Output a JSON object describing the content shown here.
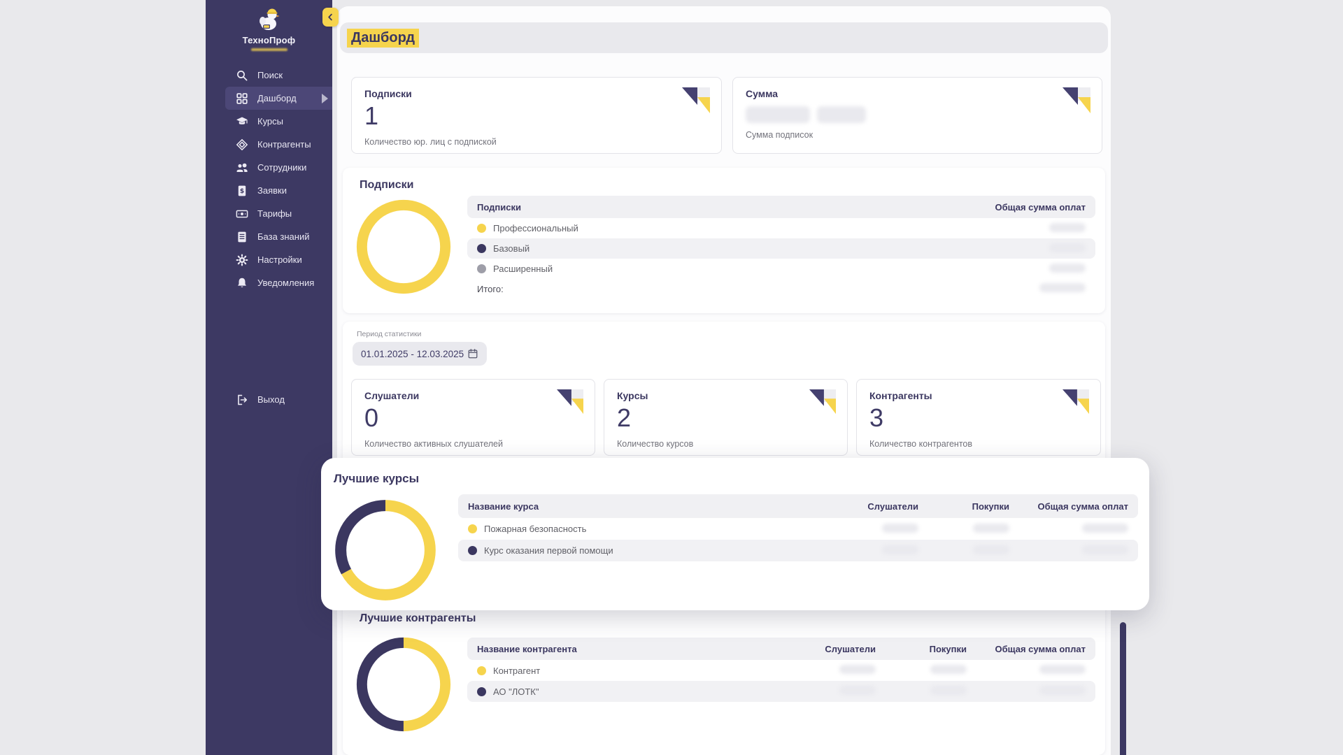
{
  "app": {
    "brand": "ТехноПроф"
  },
  "sidebar": {
    "items": [
      {
        "label": "Поиск",
        "icon": "search-icon"
      },
      {
        "label": "Дашборд",
        "icon": "dashboard-icon",
        "active": true
      },
      {
        "label": "Курсы",
        "icon": "courses-icon"
      },
      {
        "label": "Контрагенты",
        "icon": "counterparties-icon"
      },
      {
        "label": "Сотрудники",
        "icon": "employees-icon"
      },
      {
        "label": "Заявки",
        "icon": "requests-icon"
      },
      {
        "label": "Тарифы",
        "icon": "tariffs-icon"
      },
      {
        "label": "База знаний",
        "icon": "knowledge-base-icon"
      },
      {
        "label": "Настройки",
        "icon": "settings-icon"
      },
      {
        "label": "Уведомления",
        "icon": "notifications-icon"
      }
    ],
    "logout_label": "Выход"
  },
  "header": {
    "title": "Дашборд"
  },
  "kpi_top": [
    {
      "title": "Подписки",
      "value": "1",
      "subtitle": "Количество юр. лиц с подпиской"
    },
    {
      "title": "Сумма",
      "value": "",
      "subtitle": "Сумма подписок",
      "redacted": true
    }
  ],
  "subscriptions": {
    "section_title": "Подписки",
    "table": {
      "col_name": "Подписки",
      "col_total": "Общая сумма оплат",
      "rows": [
        {
          "label": "Профессиональный",
          "color": "#f6d44d"
        },
        {
          "label": "Базовый",
          "color": "#3b3760"
        },
        {
          "label": "Расширенный",
          "color": "#9e9ea8"
        }
      ],
      "total_label": "Итого:"
    }
  },
  "period": {
    "label": "Период статистики",
    "value": "01.01.2025 - 12.03.2025"
  },
  "kpi_stats": [
    {
      "title": "Слушатели",
      "value": "0",
      "subtitle": "Количество активных слушателей"
    },
    {
      "title": "Курсы",
      "value": "2",
      "subtitle": "Количество курсов"
    },
    {
      "title": "Контрагенты",
      "value": "3",
      "subtitle": "Количество контрагентов"
    }
  ],
  "best_courses": {
    "title": "Лучшие курсы",
    "columns": [
      "Название курса",
      "Слушатели",
      "Покупки",
      "Общая сумма оплат"
    ],
    "rows": [
      {
        "label": "Пожарная безопасность",
        "color": "#f6d44d"
      },
      {
        "label": "Курс оказания первой помощи",
        "color": "#3b3760"
      }
    ]
  },
  "best_counterparties": {
    "title": "Лучшие контрагенты",
    "columns": [
      "Название контрагента",
      "Слушатели",
      "Покупки",
      "Общая сумма оплат"
    ],
    "rows": [
      {
        "label": "Контрагент",
        "color": "#f6d44d"
      },
      {
        "label": "АО \"ЛОТК\"",
        "color": "#3b3760"
      }
    ]
  },
  "chart_data": [
    {
      "type": "pie",
      "name": "subscriptions-donut",
      "labels": [
        "Профессиональный"
      ],
      "values": [
        100
      ],
      "colors": [
        "#f6d44d"
      ]
    },
    {
      "type": "pie",
      "name": "best-courses-donut",
      "labels": [
        "Пожарная безопасность",
        "Курс оказания первой помощи"
      ],
      "values": [
        67,
        33
      ],
      "colors": [
        "#f6d44d",
        "#3b3760"
      ]
    },
    {
      "type": "pie",
      "name": "best-counterparties-donut",
      "labels": [
        "Контрагент",
        "АО \"ЛОТК\""
      ],
      "values": [
        50,
        50
      ],
      "colors": [
        "#f6d44d",
        "#3b3760"
      ]
    }
  ],
  "colors": {
    "accent_yellow": "#f6d44d",
    "brand_navy": "#3d3963",
    "text_navy": "#3b3760"
  }
}
